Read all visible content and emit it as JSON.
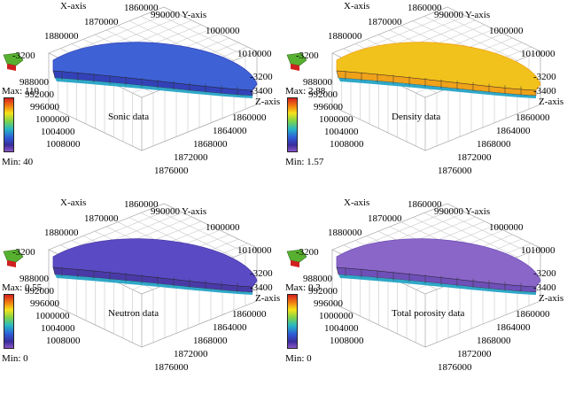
{
  "axes": {
    "x_axis_label": "X-axis",
    "y_axis_label": "Y-axis",
    "z_axis_label": "Z-axis",
    "z_top": "-3200",
    "z_bottom": "-3400"
  },
  "panels": [
    {
      "caption": "Sonic data",
      "max": "Max: 110",
      "min": "Min: 40",
      "x_ticks": [
        "1860000",
        "1870000",
        "1880000"
      ],
      "y_ticks": [
        "990000",
        "1000000",
        "1010000"
      ],
      "left_ticks": [
        "988000",
        "992000",
        "996000",
        "1000000",
        "1004000",
        "1008000"
      ],
      "right_ticks": [
        "1860000",
        "1864000",
        "1868000",
        "1872000",
        "1876000"
      ],
      "fill_color": "#3e62d6",
      "fill_color_dark": "#3342b8"
    },
    {
      "caption": "Density data",
      "max": "Max: 2.88",
      "min": "Min: 1.57",
      "x_ticks": [
        "1860000",
        "1870000",
        "1880000"
      ],
      "y_ticks": [
        "990000",
        "1000000",
        "1010000"
      ],
      "left_ticks": [
        "988000",
        "992000",
        "996000",
        "1000000",
        "1004000",
        "1008000"
      ],
      "right_ticks": [
        "1860000",
        "1864000",
        "1868000",
        "1872000",
        "1876000"
      ],
      "fill_color": "#f2c21c",
      "fill_color_dark": "#f0a21a"
    },
    {
      "caption": "Neutron data",
      "max": "Max: 0.55",
      "min": "Min: 0",
      "x_ticks": [
        "1860000",
        "1870000",
        "1880000"
      ],
      "y_ticks": [
        "990000",
        "1000000",
        "1010000"
      ],
      "left_ticks": [
        "988000",
        "992000",
        "996000",
        "1000000",
        "1004000",
        "1008000"
      ],
      "right_ticks": [
        "1860000",
        "1864000",
        "1868000",
        "1872000",
        "1876000"
      ],
      "fill_color": "#5a4bc4",
      "fill_color_dark": "#4a3aa8"
    },
    {
      "caption": "Total porosity data",
      "max": "Max: 0.3",
      "min": "Min: 0",
      "x_ticks": [
        "1860000",
        "1870000",
        "1880000"
      ],
      "y_ticks": [
        "990000",
        "1000000",
        "1010000"
      ],
      "left_ticks": [
        "988000",
        "992000",
        "996000",
        "1000000",
        "1004000",
        "1008000"
      ],
      "right_ticks": [
        "1860000",
        "1864000",
        "1868000",
        "1872000",
        "1876000"
      ],
      "fill_color": "#8a66c8",
      "fill_color_dark": "#6f4fb8"
    }
  ]
}
